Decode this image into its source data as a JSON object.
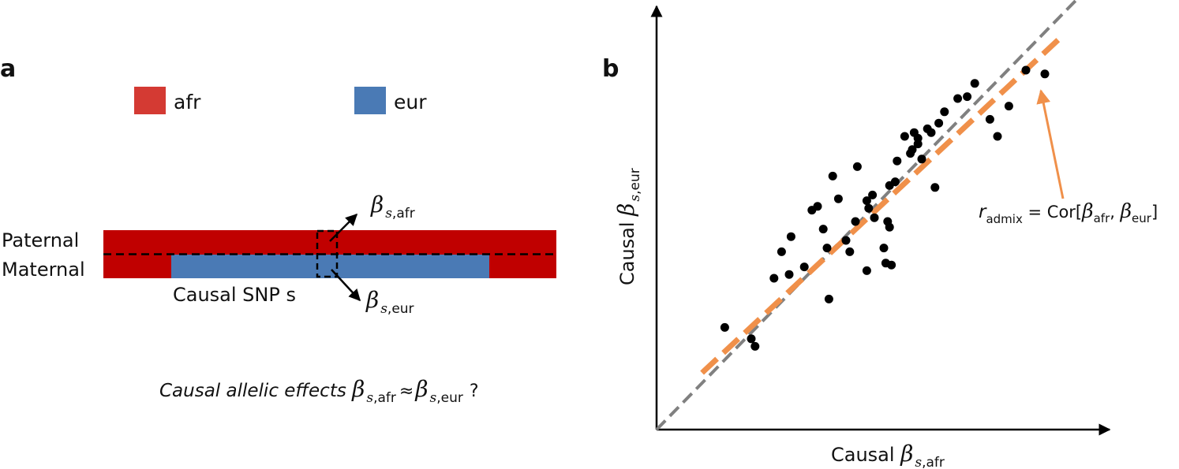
{
  "colors": {
    "afr_legend": "#d43a33",
    "afr_bar": "#c00000",
    "eur": "#4a7ab5",
    "red_text": "#d42a2a",
    "blue_text": "#1a1ad0",
    "orange": "#f0904a",
    "gray_line": "#808080",
    "point": "#000000"
  },
  "panel_a": {
    "label": "a",
    "legend": {
      "afr": "afr",
      "eur": "eur"
    },
    "paternal": "Paternal",
    "maternal": "Maternal",
    "causal_snp": "Causal SNP s",
    "beta": "β",
    "s": "s",
    "comma": ",",
    "afr": "afr",
    "eur": "eur",
    "question_prefix": "Causal allelic effects ",
    "approx": "≈",
    "question_mark": "?"
  },
  "panel_b": {
    "label": "b",
    "xlabel_prefix": "Causal ",
    "ylabel_prefix": "Causal ",
    "beta": "β",
    "s": "s",
    "comma": ",",
    "afr": "afr",
    "eur": "eur",
    "annotation": {
      "r": "r",
      "sub": "admix",
      "eq": " = Cor[",
      "sep": ", ",
      "close": "]"
    }
  },
  "chart_data": {
    "type": "scatter",
    "title": "",
    "xlabel": "Causal β s,afr",
    "ylabel": "Causal β s,eur",
    "xlim": [
      0,
      100
    ],
    "ylim": [
      0,
      100
    ],
    "grid": false,
    "points": [
      [
        18.0,
        27.0
      ],
      [
        25.0,
        24.0
      ],
      [
        26.0,
        22.0
      ],
      [
        31.0,
        40.0
      ],
      [
        33.0,
        47.0
      ],
      [
        35.5,
        51.0
      ],
      [
        35.0,
        41.0
      ],
      [
        39.0,
        43.0
      ],
      [
        42.5,
        59.0
      ],
      [
        41.0,
        58.0
      ],
      [
        44.0,
        53.0
      ],
      [
        45.0,
        48.0
      ],
      [
        46.5,
        67.0
      ],
      [
        48.0,
        61.0
      ],
      [
        51.0,
        47.0
      ],
      [
        50.0,
        50.0
      ],
      [
        52.5,
        55.0
      ],
      [
        53.0,
        69.5
      ],
      [
        45.5,
        34.5
      ],
      [
        55.5,
        60.5
      ],
      [
        56.0,
        58.5
      ],
      [
        55.5,
        42.0
      ],
      [
        57.5,
        56.0
      ],
      [
        57.0,
        62.0
      ],
      [
        60.0,
        48.0
      ],
      [
        61.0,
        55.0
      ],
      [
        61.5,
        64.5
      ],
      [
        62.0,
        43.5
      ],
      [
        61.5,
        53.5
      ],
      [
        60.5,
        44.0
      ],
      [
        63.0,
        65.5
      ],
      [
        63.5,
        71.0
      ],
      [
        65.5,
        77.5
      ],
      [
        67.5,
        74.0
      ],
      [
        68.0,
        78.5
      ],
      [
        67.0,
        73.0
      ],
      [
        69.0,
        77.0
      ],
      [
        70.0,
        71.5
      ],
      [
        69.0,
        75.5
      ],
      [
        73.5,
        64.0
      ],
      [
        72.5,
        78.5
      ],
      [
        71.5,
        79.5
      ],
      [
        74.5,
        81.0
      ],
      [
        76.0,
        84.0
      ],
      [
        79.5,
        87.5
      ],
      [
        82.0,
        88.0
      ],
      [
        84.0,
        91.5
      ],
      [
        88.0,
        82.0
      ],
      [
        90.0,
        77.5
      ],
      [
        93.0,
        85.5
      ],
      [
        97.5,
        95.0
      ],
      [
        102.5,
        94.0
      ]
    ],
    "reference_line": {
      "style": "dashed",
      "from": [
        0,
        0
      ],
      "to": [
        121,
        124
      ]
    },
    "fit_line": {
      "style": "dashed",
      "from": [
        12,
        15
      ],
      "to": [
        106,
        103
      ]
    }
  }
}
